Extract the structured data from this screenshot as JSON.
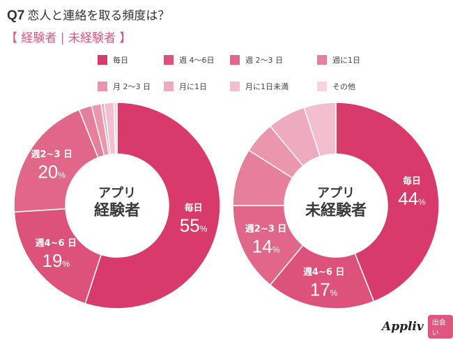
{
  "header": {
    "q_label": "Q7",
    "title": "恋人と連絡を取る頻度は？",
    "subtitle": "【 経験者 | 未経験者 】"
  },
  "legend": [
    {
      "label": "毎日",
      "color": "#d83b6b"
    },
    {
      "label": "週 4〜6日",
      "color": "#dc527a"
    },
    {
      "label": "週 2〜3 日",
      "color": "#e0678a"
    },
    {
      "label": "週に1日",
      "color": "#e57f9b"
    },
    {
      "label": "月 2〜3 日",
      "color": "#ea97ae"
    },
    {
      "label": "月に1日",
      "color": "#eeaabf"
    },
    {
      "label": "月に1日未満",
      "color": "#f3bfcf"
    },
    {
      "label": "その他",
      "color": "#f7d3df"
    }
  ],
  "chart_data": [
    {
      "type": "pie",
      "variant": "donut",
      "title": "アプリ経験者",
      "center_label": [
        "アプリ",
        "経験者"
      ],
      "categories": [
        "毎日",
        "週4〜6日",
        "週2〜3日",
        "週に1日",
        "月2〜3日",
        "月に1日",
        "月に1日未満",
        "その他"
      ],
      "values": [
        55,
        19,
        20,
        2,
        1.5,
        0.5,
        1.5,
        0.5
      ],
      "unit": "%",
      "data_labels": [
        {
          "category": "毎日",
          "name": "毎日",
          "value": "55"
        },
        {
          "category": "週4〜6日",
          "name": "週4~6 日",
          "value": "19"
        },
        {
          "category": "週2〜3日",
          "name": "週2~3 日",
          "value": "20"
        }
      ]
    },
    {
      "type": "pie",
      "variant": "donut",
      "title": "アプリ未経験者",
      "center_label": [
        "アプリ",
        "未経験者"
      ],
      "categories": [
        "毎日",
        "週4〜6日",
        "週2〜3日",
        "週に1日",
        "月2〜3日",
        "月に1日",
        "月に1日未満",
        "その他"
      ],
      "values": [
        44,
        17,
        14,
        9,
        5,
        6,
        5,
        0
      ],
      "unit": "%",
      "data_labels": [
        {
          "category": "毎日",
          "name": "毎日",
          "value": "44"
        },
        {
          "category": "週4〜6日",
          "name": "週4~6 日",
          "value": "17"
        },
        {
          "category": "週2〜3日",
          "name": "週2~3 日",
          "value": "14"
        }
      ]
    }
  ],
  "percent_sign": "%",
  "logo": {
    "brand": "Appliv",
    "badge": "出会い"
  }
}
